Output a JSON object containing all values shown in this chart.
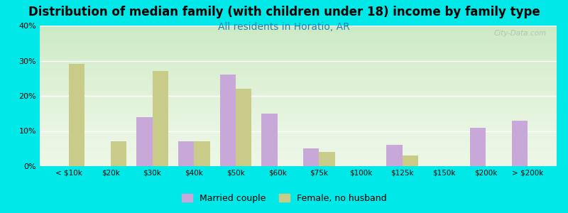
{
  "title": "Distribution of median family (with children under 18) income by family type",
  "subtitle": "All residents in Horatio, AR",
  "categories": [
    "< $10k",
    "$20k",
    "$30k",
    "$40k",
    "$50k",
    "$60k",
    "$75k",
    "$100k",
    "$125k",
    "$150k",
    "$200k",
    "> $200k"
  ],
  "married": [
    0,
    0,
    14,
    7,
    26,
    15,
    5,
    0,
    6,
    0,
    11,
    13
  ],
  "female": [
    29,
    7,
    27,
    7,
    22,
    0,
    4,
    0,
    3,
    0,
    0,
    0
  ],
  "married_color": "#c8a8d8",
  "female_color": "#c8cc88",
  "bg_outer": "#00e8e8",
  "title_fontsize": 12,
  "subtitle_fontsize": 10,
  "subtitle_color": "#2080b0",
  "ylim": [
    0,
    40
  ],
  "yticks": [
    0,
    10,
    20,
    30,
    40
  ],
  "legend_married": "Married couple",
  "legend_female": "Female, no husband",
  "bar_width": 0.38,
  "watermark": "City-Data.com"
}
